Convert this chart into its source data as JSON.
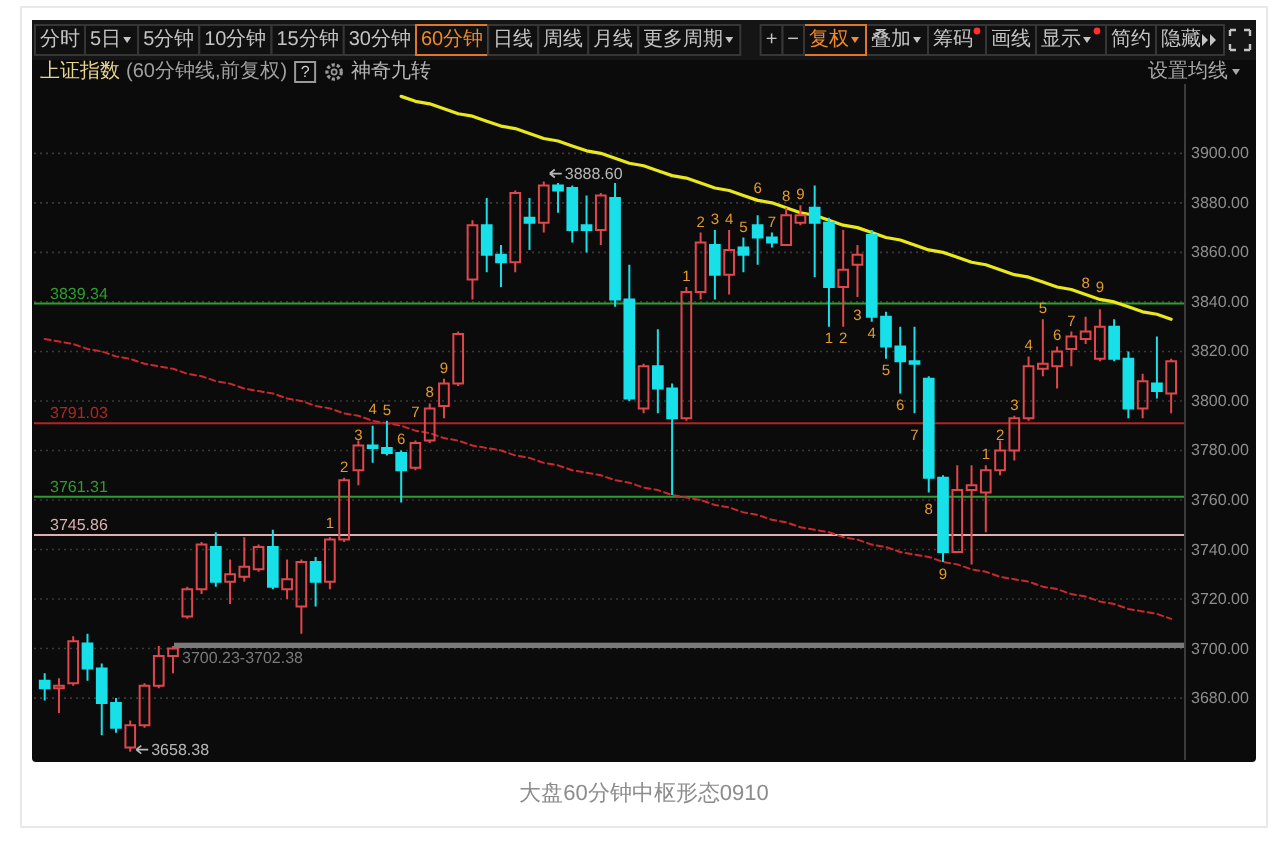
{
  "chart_data": {
    "type": "candlestick",
    "title": "上证指数",
    "subtitle": "(60分钟线,前复权)",
    "categories": [
      null,
      null,
      null,
      null,
      null,
      null,
      null,
      null,
      null,
      null,
      null,
      null,
      null,
      null,
      null,
      null,
      null,
      null,
      null,
      null,
      null,
      null,
      null,
      null,
      null,
      null,
      null,
      null,
      null,
      null,
      null,
      null,
      null,
      null,
      null,
      null,
      null,
      null,
      null,
      null,
      null,
      null,
      null,
      null,
      null,
      null,
      null,
      null,
      null,
      null,
      null,
      null,
      null,
      null,
      null,
      null,
      null,
      null,
      null,
      null,
      null,
      null,
      null,
      null,
      null,
      null,
      null,
      null,
      null,
      null,
      null,
      null,
      null,
      null,
      null,
      null,
      null,
      null,
      null,
      null
    ],
    "ohlc": [
      [
        3687,
        3690,
        3679,
        3684
      ],
      [
        3684,
        3688,
        3674,
        3685
      ],
      [
        3686,
        3705,
        3685,
        3703
      ],
      [
        3702,
        3706,
        3687,
        3692
      ],
      [
        3692,
        3694,
        3665,
        3678
      ],
      [
        3678,
        3680,
        3666,
        3668
      ],
      [
        3660,
        3671,
        3658.38,
        3669
      ],
      [
        3669,
        3686,
        3668,
        3685
      ],
      [
        3685,
        3701,
        3684,
        3697
      ],
      [
        3697,
        3701,
        3690,
        3700
      ],
      [
        3713,
        3725,
        3712,
        3724
      ],
      [
        3724,
        3743,
        3722,
        3742
      ],
      [
        3741,
        3747,
        3725,
        3727
      ],
      [
        3727,
        3736,
        3718,
        3730
      ],
      [
        3729,
        3745,
        3727,
        3733
      ],
      [
        3732,
        3742,
        3731,
        3741
      ],
      [
        3741,
        3748,
        3724,
        3725
      ],
      [
        3724,
        3736,
        3720,
        3728
      ],
      [
        3717,
        3736,
        3706,
        3735
      ],
      [
        3735,
        3737,
        3717,
        3727
      ],
      [
        3727,
        3745,
        3724,
        3744
      ],
      [
        3744,
        3769,
        3743,
        3768
      ],
      [
        3772,
        3784,
        3766,
        3782
      ],
      [
        3782,
        3790,
        3775,
        3781
      ],
      [
        3781,
        3792,
        3778,
        3779
      ],
      [
        3779,
        3780,
        3759,
        3772
      ],
      [
        3773,
        3784,
        3772,
        3783
      ],
      [
        3784,
        3799,
        3783,
        3797
      ],
      [
        3798,
        3809,
        3793,
        3807
      ],
      [
        3807,
        3828,
        3806,
        3827
      ],
      [
        3849,
        3873,
        3841,
        3871
      ],
      [
        3871,
        3882,
        3852,
        3859
      ],
      [
        3859,
        3863,
        3846,
        3856
      ],
      [
        3856,
        3885,
        3852,
        3884
      ],
      [
        3874,
        3882,
        3861,
        3872
      ],
      [
        3872,
        3888.6,
        3868,
        3887
      ],
      [
        3887,
        3888,
        3876,
        3885
      ],
      [
        3886,
        3887,
        3864,
        3869
      ],
      [
        3871,
        3883,
        3860,
        3869
      ],
      [
        3869,
        3884,
        3863,
        3883
      ],
      [
        3882,
        3888,
        3838,
        3841
      ],
      [
        3841,
        3855,
        3800,
        3801
      ],
      [
        3797,
        3815,
        3795,
        3814
      ],
      [
        3814,
        3829,
        3795,
        3805
      ],
      [
        3805,
        3807,
        3762,
        3793
      ],
      [
        3793,
        3846,
        3792,
        3844
      ],
      [
        3844,
        3868,
        3841,
        3864
      ],
      [
        3863,
        3869,
        3841,
        3851
      ],
      [
        3851,
        3869,
        3843,
        3861
      ],
      [
        3862,
        3866,
        3852,
        3859
      ],
      [
        3871,
        3875,
        3855,
        3866
      ],
      [
        3866,
        3868,
        3862,
        3864
      ],
      [
        3863,
        3878,
        3863,
        3875
      ],
      [
        3872,
        3879,
        3871,
        3875
      ],
      [
        3878,
        3887,
        3850,
        3872
      ],
      [
        3872,
        3874,
        3830,
        3846
      ],
      [
        3846,
        3869,
        3830,
        3853
      ],
      [
        3855,
        3863,
        3842,
        3859
      ],
      [
        3867,
        3869,
        3832,
        3834
      ],
      [
        3834,
        3836,
        3817,
        3822
      ],
      [
        3822,
        3830,
        3803,
        3816
      ],
      [
        3816,
        3830,
        3795,
        3815
      ],
      [
        3809,
        3810,
        3763,
        3769
      ],
      [
        3769,
        3770,
        3735,
        3739
      ],
      [
        3739,
        3774,
        3739,
        3764
      ],
      [
        3764,
        3774,
        3734,
        3766
      ],
      [
        3763,
        3774,
        3747,
        3772
      ],
      [
        3772,
        3784,
        3770,
        3780
      ],
      [
        3780,
        3794,
        3776,
        3793
      ],
      [
        3793,
        3818,
        3792,
        3814
      ],
      [
        3813,
        3833,
        3810,
        3815
      ],
      [
        3814,
        3822,
        3805,
        3820
      ],
      [
        3821,
        3828,
        3814,
        3826
      ],
      [
        3825,
        3834,
        3823,
        3828
      ],
      [
        3817,
        3837,
        3816,
        3830
      ],
      [
        3830,
        3833,
        3816,
        3817
      ],
      [
        3817,
        3820,
        3793,
        3797
      ],
      [
        3797,
        3811,
        3793,
        3808
      ],
      [
        3807,
        3826,
        3801,
        3804
      ],
      [
        3803,
        3817,
        3795,
        3816
      ]
    ],
    "colors": [
      "#18e0e8",
      "#e0474c",
      "#e0474c",
      "#18e0e8",
      "#18e0e8",
      "#18e0e8",
      "#e0474c",
      "#e0474c",
      "#e0474c",
      "#e0474c",
      "#e0474c",
      "#e0474c",
      "#18e0e8",
      "#e0474c",
      "#e0474c",
      "#e0474c",
      "#18e0e8",
      "#e0474c",
      "#e0474c",
      "#18e0e8",
      "#e0474c",
      "#e0474c",
      "#e0474c",
      "#18e0e8",
      "#18e0e8",
      "#18e0e8",
      "#e0474c",
      "#e0474c",
      "#e0474c",
      "#e0474c",
      "#e0474c",
      "#18e0e8",
      "#18e0e8",
      "#e0474c",
      "#18e0e8",
      "#e0474c",
      "#18e0e8",
      "#18e0e8",
      "#18e0e8",
      "#e0474c",
      "#18e0e8",
      "#18e0e8",
      "#e0474c",
      "#18e0e8",
      "#18e0e8",
      "#e0474c",
      "#e0474c",
      "#18e0e8",
      "#e0474c",
      "#18e0e8",
      "#18e0e8",
      "#18e0e8",
      "#e0474c",
      "#e0474c",
      "#18e0e8",
      "#18e0e8",
      "#e0474c",
      "#e0474c",
      "#18e0e8",
      "#18e0e8",
      "#18e0e8",
      "#18e0e8",
      "#18e0e8",
      "#18e0e8",
      "#e0474c",
      "#e0474c",
      "#e0474c",
      "#e0474c",
      "#e0474c",
      "#e0474c",
      "#e0474c",
      "#e0474c",
      "#e0474c",
      "#e0474c",
      "#e0474c",
      "#18e0e8",
      "#18e0e8",
      "#e0474c",
      "#18e0e8",
      "#e0474c"
    ],
    "value_labels": [
      null,
      null,
      null,
      null,
      null,
      null,
      null,
      null,
      null,
      null,
      null,
      null,
      null,
      null,
      null,
      null,
      null,
      null,
      null,
      null,
      "1",
      "2",
      "3",
      "4",
      "5",
      "6",
      "7",
      "8",
      "9",
      null,
      null,
      null,
      null,
      null,
      null,
      null,
      null,
      null,
      null,
      null,
      null,
      null,
      null,
      null,
      null,
      "1",
      "2",
      "3",
      "4",
      "5",
      "6",
      "7",
      "8",
      "9",
      null,
      "1",
      "2",
      "3",
      "4",
      "5",
      "6",
      "7",
      "8",
      "9",
      null,
      null,
      "1",
      "2",
      "3",
      "4",
      "5",
      "6",
      "7",
      "8",
      "9",
      null,
      null,
      null,
      null,
      null
    ],
    "series": [
      {
        "type": "line",
        "color": "#e8e81c",
        "values": [
          null,
          null,
          null,
          null,
          null,
          null,
          null,
          null,
          null,
          null,
          null,
          null,
          null,
          null,
          null,
          null,
          null,
          null,
          null,
          null,
          null,
          null,
          null,
          null,
          null,
          3923,
          3921,
          3920,
          3918,
          3916,
          3915,
          3913,
          3911,
          3910,
          3908,
          3906,
          3905,
          3903,
          3901,
          3900,
          3898,
          3896,
          3895,
          3893,
          3891,
          3890,
          3888,
          3886,
          3885,
          3883,
          3881,
          3880,
          3878,
          3876,
          3875,
          3873,
          3871,
          3870,
          3868,
          3866,
          3865,
          3863,
          3861,
          3860,
          3858,
          3856,
          3855,
          3853,
          3851,
          3850,
          3848,
          3846,
          3845,
          3843,
          3841,
          3840,
          3838,
          3836,
          3835,
          3833
        ]
      },
      {
        "type": "line",
        "color": "#c8282e",
        "line_style": "dashed",
        "values": [
          3825,
          3824,
          3823,
          3821,
          3820,
          3818,
          3817,
          3815,
          3814,
          3813,
          3811,
          3810,
          3808,
          3807,
          3805,
          3804,
          3803,
          3801,
          3800,
          3798,
          3797,
          3795,
          3794,
          3792,
          3791,
          3790,
          3788,
          3787,
          3785,
          3784,
          3782,
          3781,
          3780,
          3778,
          3777,
          3775,
          3774,
          3772,
          3771,
          3770,
          3768,
          3767,
          3765,
          3764,
          3762,
          3761,
          3760,
          3758,
          3757,
          3755,
          3754,
          3752,
          3751,
          3749,
          3748,
          3747,
          3745,
          3744,
          3742,
          3741,
          3739,
          3738,
          3737,
          3735,
          3734,
          3732,
          3731,
          3729,
          3728,
          3727,
          3725,
          3724,
          3722,
          3721,
          3719,
          3718,
          3716,
          3715,
          3714,
          3712
        ]
      }
    ],
    "ylim": [
      3655,
      3928
    ],
    "yticks": [
      {
        "value": 3680,
        "label": "3680.00"
      },
      {
        "value": 3700,
        "label": "3700.00"
      },
      {
        "value": 3720,
        "label": "3720.00"
      },
      {
        "value": 3740,
        "label": "3740.00"
      },
      {
        "value": 3760,
        "label": "3760.00"
      },
      {
        "value": 3780,
        "label": "3780.00"
      },
      {
        "value": 3800,
        "label": "3800.00"
      },
      {
        "value": 3820,
        "label": "3820.00"
      },
      {
        "value": 3840,
        "label": "3840.00"
      },
      {
        "value": 3860,
        "label": "3860.00"
      },
      {
        "value": 3880,
        "label": "3880.00"
      },
      {
        "value": 3900,
        "label": "3900.00"
      }
    ],
    "grid": "y",
    "tick_labels": "y",
    "ref_lines": [
      {
        "axis": "y",
        "value": 3839.34,
        "label": "3839.34",
        "color": "#2f9e2f"
      },
      {
        "axis": "y",
        "value": 3791.03,
        "label": "3791.03",
        "color": "#b52424"
      },
      {
        "axis": "y",
        "value": 3761.31,
        "label": "3761.31",
        "color": "#2f9e2f"
      },
      {
        "axis": "y",
        "value": 3745.86,
        "label": "3745.86",
        "color": "#dcb0b0"
      }
    ],
    "bands": [
      {
        "axis": "y",
        "from": 3700.23,
        "to": 3702.38,
        "label": "3700.23-3702.38",
        "color": "#7a7a7a"
      }
    ],
    "annotations": [
      "3888.60",
      "3658.38",
      "分时",
      "5日",
      "5分钟",
      "10分钟",
      "15分钟",
      "30分钟",
      "60分钟",
      "日线",
      "周线",
      "月线",
      "更多周期",
      "+",
      "−",
      "复权",
      "叠加",
      "筹码",
      "画线",
      "显示",
      "简约",
      "隐藏",
      "?",
      "神奇九转",
      "设置均线",
      "大盘60分钟中枢形态0910"
    ]
  }
}
